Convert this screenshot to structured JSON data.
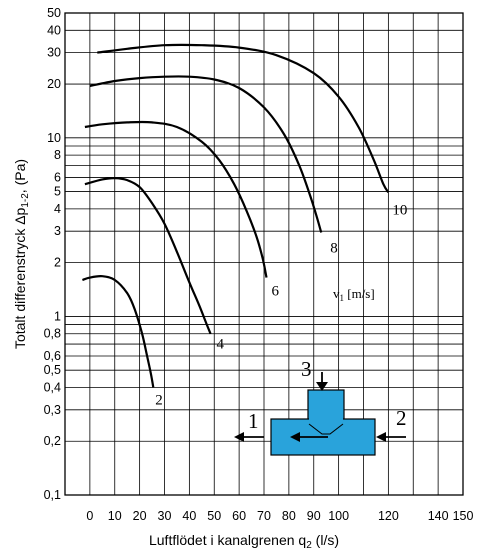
{
  "chart_data": {
    "type": "line",
    "title": "",
    "xlabel": "Luftflödet i kanalgrenen q",
    "xlabel_sub": "2",
    "xlabel_unit": " (l/s)",
    "ylabel": "Totalt differenstryck Δp",
    "ylabel_sub": "1-2",
    "ylabel_unit": ", (Pa)",
    "ylog": true,
    "ylim": [
      0.1,
      50
    ],
    "xlim": [
      -10,
      150
    ],
    "grid": true,
    "y_ticks": [
      {
        "value": 0.1,
        "label": "0,1"
      },
      {
        "value": 0.2,
        "label": "0,2"
      },
      {
        "value": 0.3,
        "label": "0,3"
      },
      {
        "value": 0.4,
        "label": "0,4"
      },
      {
        "value": 0.5,
        "label": "0,5"
      },
      {
        "value": 0.6,
        "label": "0,6"
      },
      {
        "value": 0.8,
        "label": "0,8"
      },
      {
        "value": 1,
        "label": "1"
      },
      {
        "value": 2,
        "label": "2"
      },
      {
        "value": 3,
        "label": "3"
      },
      {
        "value": 4,
        "label": "4"
      },
      {
        "value": 5,
        "label": "5"
      },
      {
        "value": 6,
        "label": "6"
      },
      {
        "value": 8,
        "label": "8"
      },
      {
        "value": 10,
        "label": "10"
      },
      {
        "value": 20,
        "label": "20"
      },
      {
        "value": 30,
        "label": "30"
      },
      {
        "value": 40,
        "label": "40"
      },
      {
        "value": 50,
        "label": "50"
      }
    ],
    "y_extra_gridlines": [
      0.7,
      0.9,
      7,
      9
    ],
    "x_ticks": [
      {
        "value": 0,
        "label": "0"
      },
      {
        "value": 10,
        "label": "10"
      },
      {
        "value": 20,
        "label": "20"
      },
      {
        "value": 30,
        "label": "30"
      },
      {
        "value": 40,
        "label": "40"
      },
      {
        "value": 50,
        "label": "50"
      },
      {
        "value": 60,
        "label": "60"
      },
      {
        "value": 70,
        "label": "70"
      },
      {
        "value": 80,
        "label": "80"
      },
      {
        "value": 90,
        "label": "90"
      },
      {
        "value": 100,
        "label": "100"
      },
      {
        "value": 120,
        "label": "120"
      },
      {
        "value": 140,
        "label": "140"
      },
      {
        "value": 150,
        "label": "150"
      }
    ],
    "x_gridlines": [
      0,
      10,
      20,
      30,
      40,
      50,
      60,
      70,
      80,
      90,
      100,
      110,
      120,
      130,
      140
    ],
    "series_label_title": "v",
    "series_label_sub": "1",
    "series_label_unit": " [m/s]",
    "series": [
      {
        "name": "2",
        "points": [
          [
            -3,
            1.6
          ],
          [
            0,
            1.65
          ],
          [
            5,
            1.68
          ],
          [
            10,
            1.6
          ],
          [
            15,
            1.35
          ],
          [
            18,
            1.1
          ],
          [
            21,
            0.8
          ],
          [
            23,
            0.6
          ],
          [
            24.5,
            0.48
          ],
          [
            25.5,
            0.4
          ]
        ]
      },
      {
        "name": "4",
        "points": [
          [
            -2,
            5.5
          ],
          [
            5,
            5.85
          ],
          [
            10,
            5.95
          ],
          [
            15,
            5.8
          ],
          [
            20,
            5.3
          ],
          [
            25,
            4.3
          ],
          [
            30,
            3.3
          ],
          [
            35,
            2.3
          ],
          [
            40,
            1.55
          ],
          [
            44,
            1.15
          ],
          [
            47,
            0.9
          ],
          [
            48.5,
            0.8
          ]
        ]
      },
      {
        "name": "6",
        "points": [
          [
            -2,
            11.5
          ],
          [
            5,
            11.9
          ],
          [
            15,
            12.2
          ],
          [
            25,
            12.2
          ],
          [
            35,
            11.5
          ],
          [
            45,
            9.5
          ],
          [
            52,
            7.5
          ],
          [
            58,
            5.5
          ],
          [
            63,
            3.9
          ],
          [
            67,
            2.8
          ],
          [
            69.5,
            2.1
          ],
          [
            71,
            1.65
          ]
        ]
      },
      {
        "name": "8",
        "points": [
          [
            0,
            19.5
          ],
          [
            10,
            20.8
          ],
          [
            20,
            21.6
          ],
          [
            30,
            22
          ],
          [
            40,
            22
          ],
          [
            50,
            21.2
          ],
          [
            60,
            19
          ],
          [
            70,
            14.8
          ],
          [
            78,
            10.5
          ],
          [
            84,
            7.1
          ],
          [
            88,
            5
          ],
          [
            91,
            3.7
          ],
          [
            93,
            2.95
          ]
        ]
      },
      {
        "name": "10",
        "points": [
          [
            3,
            30
          ],
          [
            15,
            31.5
          ],
          [
            30,
            33
          ],
          [
            45,
            33
          ],
          [
            60,
            32
          ],
          [
            75,
            29
          ],
          [
            90,
            23
          ],
          [
            100,
            17
          ],
          [
            108,
            11.5
          ],
          [
            114,
            7.6
          ],
          [
            118,
            5.5
          ],
          [
            120,
            4.95
          ]
        ]
      }
    ],
    "diagram": {
      "labels": [
        "3",
        "1",
        "2"
      ]
    }
  }
}
